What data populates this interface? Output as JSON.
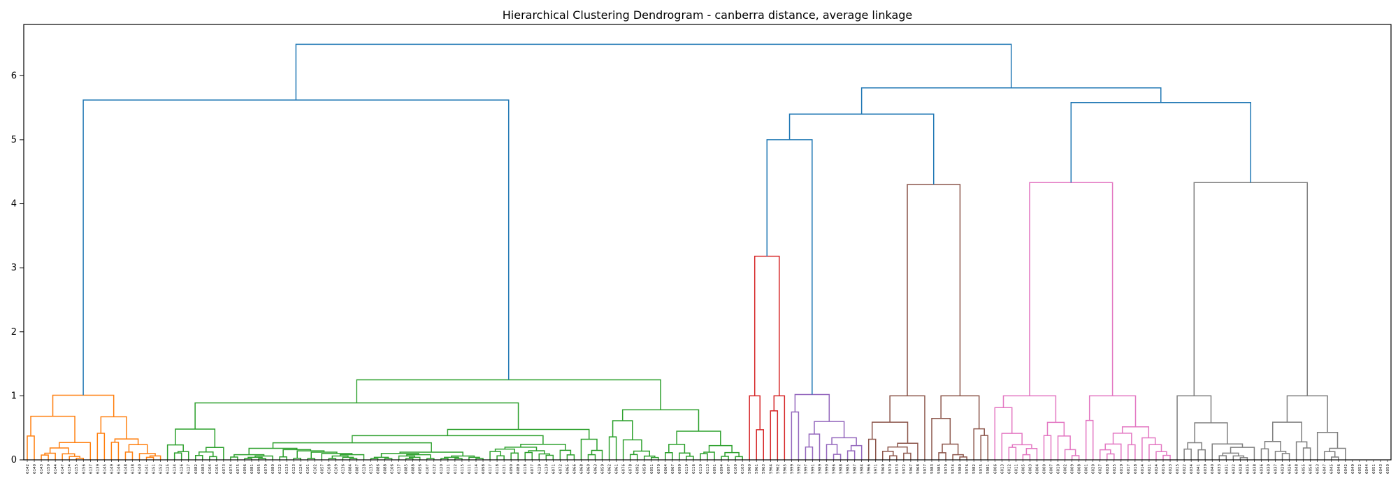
{
  "chart_data": {
    "type": "dendrogram",
    "title": "Hierarchical Clustering Dendrogram - canberra distance, average linkage",
    "xlabel": "",
    "ylabel": "",
    "ylim": [
      0,
      6.8
    ],
    "yticks": [
      0,
      1,
      2,
      3,
      4,
      5,
      6
    ],
    "grid": false,
    "leaves": [
      "6142",
      "6140",
      "6143",
      "6150",
      "6144",
      "6147",
      "6134",
      "6155",
      "6156",
      "6137",
      "6139",
      "6145",
      "6149",
      "6146",
      "6148",
      "6138",
      "6140",
      "6141",
      "6151",
      "6152",
      "6125",
      "6134",
      "6126",
      "6127",
      "6082",
      "6083",
      "6104",
      "6105",
      "6073",
      "6074",
      "6075",
      "6096",
      "6081",
      "6095",
      "6079",
      "6080",
      "6122",
      "6133",
      "6123",
      "6124",
      "6101",
      "6102",
      "6057",
      "6108",
      "6109",
      "6136",
      "6084",
      "6087",
      "6128",
      "6135",
      "6086",
      "6088",
      "6106",
      "6137",
      "6085",
      "6088",
      "6056",
      "6107",
      "6132",
      "6120",
      "6121",
      "6112",
      "6115",
      "6111",
      "6114",
      "6098",
      "6117",
      "6118",
      "6131",
      "6090",
      "6089",
      "6118",
      "6077",
      "6129",
      "6130",
      "6071",
      "6072",
      "6065",
      "6066",
      "6068",
      "6060",
      "6063",
      "6059",
      "6062",
      "6061",
      "6076",
      "6078",
      "6092",
      "6058",
      "6051",
      "6070",
      "6064",
      "6067",
      "6099",
      "6119",
      "6116",
      "6110",
      "6113",
      "6091",
      "6094",
      "6097",
      "6100",
      "6103",
      "5960",
      "5961",
      "5963",
      "5964",
      "5962",
      "5965",
      "5999",
      "5992",
      "5997",
      "5991",
      "5989",
      "5990",
      "5986",
      "5988",
      "5985",
      "5987",
      "5984",
      "5966",
      "5971",
      "5969",
      "5970",
      "5973",
      "5972",
      "5967",
      "5968",
      "5977",
      "5983",
      "5985",
      "5979",
      "5974",
      "5980",
      "5976",
      "5982",
      "5975",
      "5981",
      "6006",
      "6013",
      "6012",
      "6011",
      "6005",
      "6003",
      "6004",
      "6000",
      "6007",
      "6010",
      "6002",
      "6009",
      "6008",
      "6001",
      "6020",
      "6027",
      "6028",
      "6025",
      "6019",
      "6017",
      "6018",
      "6014",
      "6021",
      "6024",
      "6016",
      "6023",
      "6015",
      "6022",
      "6034",
      "6041",
      "6039",
      "6040",
      "6033",
      "6031",
      "6032",
      "6028",
      "6035",
      "6038",
      "6036",
      "6030",
      "6037",
      "6029",
      "6026",
      "6048",
      "6055",
      "6054",
      "6053",
      "6047",
      "6045",
      "6046",
      "6042",
      "6049",
      "6052",
      "6044",
      "6051",
      "6043",
      "6050"
    ],
    "clusters": [
      {
        "name": "",
        "color": "#ff7f0e",
        "leaves": [
          0,
          20
        ],
        "height": 1.01
      },
      {
        "name": "",
        "color": "#2ca02c",
        "leaves": [
          20,
          103
        ],
        "height": 1.25
      },
      {
        "name": "",
        "color": "#d62728",
        "leaves": [
          103,
          109
        ],
        "height": 3.18
      },
      {
        "name": "",
        "color": "#9467bd",
        "leaves": [
          109,
          120
        ],
        "height": 1.02
      },
      {
        "name": "",
        "color": "#8c564b",
        "leaves": [
          120,
          138
        ],
        "height": 4.3
      },
      {
        "name": "",
        "color": "#e377c2",
        "leaves": [
          138,
          164
        ],
        "height": 4.33
      },
      {
        "name": "",
        "color": "#7f7f7f",
        "leaves": [
          164,
          189
        ],
        "height": 4.33
      }
    ],
    "top_links": [
      {
        "left": "c0",
        "right": "c1",
        "height": 5.62
      },
      {
        "left": "c2",
        "right": "c3",
        "height": 5.0
      },
      {
        "left": "c2c3",
        "right": "c4",
        "height": 5.4
      },
      {
        "left": "c5",
        "right": "c6",
        "height": 5.58
      },
      {
        "left": "c2c3c4",
        "right": "c5c6",
        "height": 5.81
      },
      {
        "left": "c0c1",
        "right": "all",
        "height": 6.49
      }
    ],
    "above_threshold_color": "#1f77b4"
  }
}
